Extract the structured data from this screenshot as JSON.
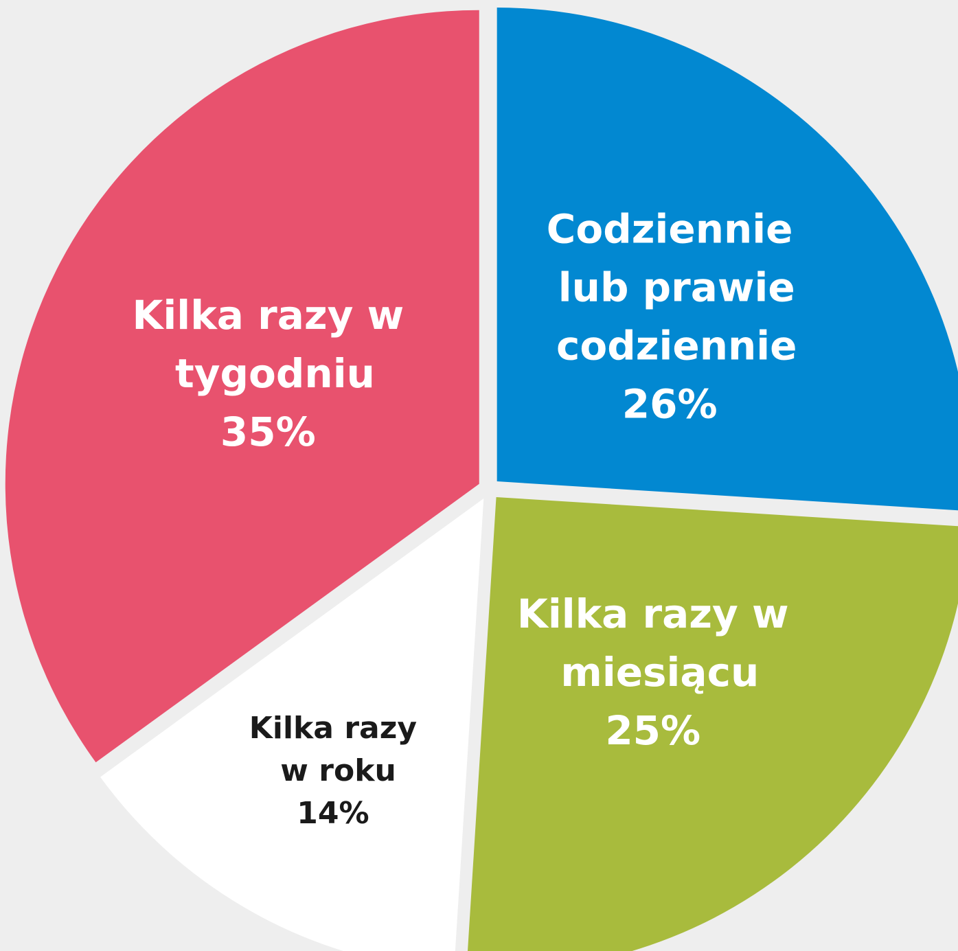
{
  "chart_data": {
    "type": "pie",
    "categories": [
      "Codziennie lub prawie codziennie",
      "Kilka razy w miesiącu",
      "Kilka razy w roku",
      "Kilka razy w tygodniu"
    ],
    "values": [
      26,
      25,
      14,
      35
    ],
    "value_labels": [
      "26%",
      "25%",
      "14%",
      "35%"
    ],
    "colors": [
      "#0288d1",
      "#a8bb3d",
      "#ffffff",
      "#e8526e"
    ]
  }
}
